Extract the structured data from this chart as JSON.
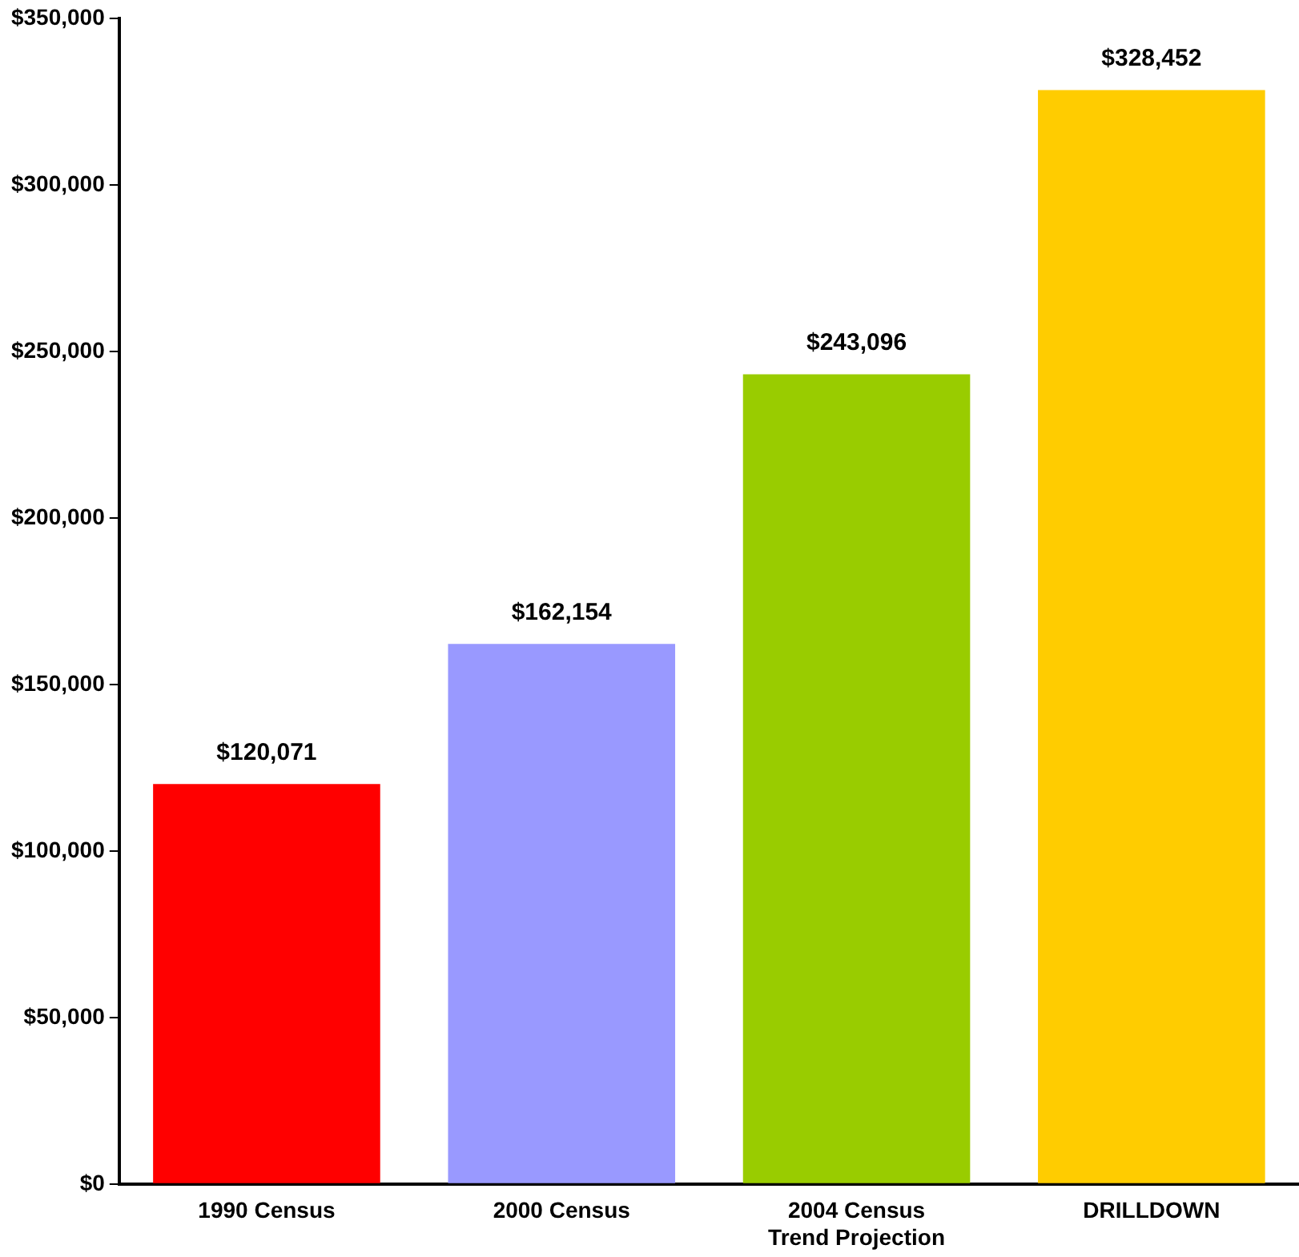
{
  "chart_data": {
    "type": "bar",
    "categories": [
      "1990 Census",
      "2000 Census",
      "2004 Census\nTrend Projection",
      "DRILLDOWN"
    ],
    "values": [
      120071,
      162154,
      243096,
      328452
    ],
    "colors": [
      "#ff0000",
      "#9999ff",
      "#99cc00",
      "#ffcc00"
    ],
    "value_labels": [
      "$120,071",
      "$162,154",
      "$243,096",
      "$328,452"
    ],
    "ylim": [
      0,
      350000
    ],
    "yticks": [
      {
        "value": 0,
        "label": "$0"
      },
      {
        "value": 50000,
        "label": "$50,000"
      },
      {
        "value": 100000,
        "label": "$100,000"
      },
      {
        "value": 150000,
        "label": "$150,000"
      },
      {
        "value": 200000,
        "label": "$200,000"
      },
      {
        "value": 250000,
        "label": "$250,000"
      },
      {
        "value": 300000,
        "label": "$300,000"
      },
      {
        "value": 350000,
        "label": "$350,000"
      }
    ],
    "grid": false,
    "legend": false
  }
}
